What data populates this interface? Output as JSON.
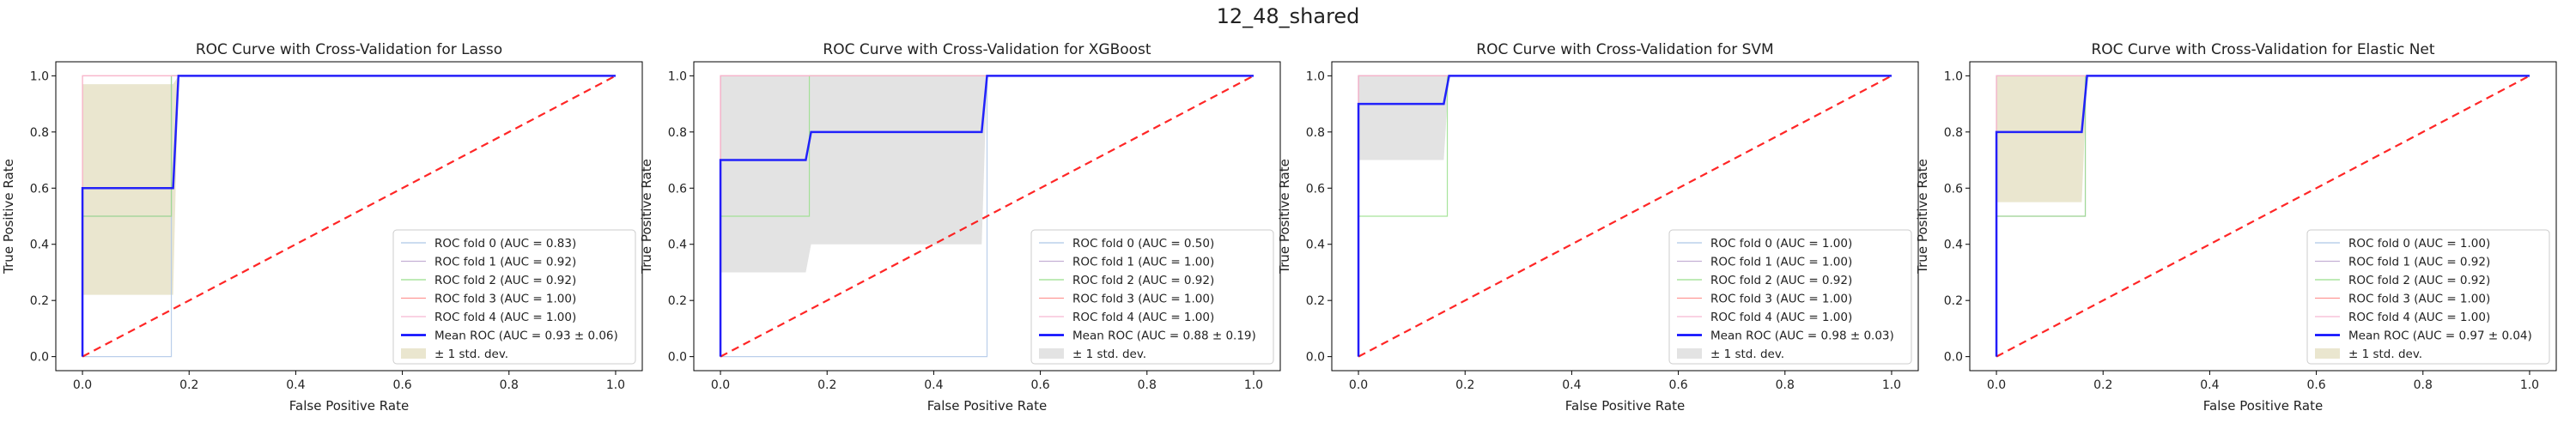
{
  "figure": {
    "suptitle": "12_48_shared"
  },
  "chart_data": [
    {
      "type": "line",
      "title": "ROC Curve with Cross-Validation for Lasso",
      "xlabel": "False Positive Rate",
      "ylabel": "True Positive Rate",
      "xlim": [
        -0.05,
        1.05
      ],
      "ylim": [
        -0.05,
        1.05
      ],
      "xticks": [
        "0.0",
        "0.2",
        "0.4",
        "0.6",
        "0.8",
        "1.0"
      ],
      "yticks": [
        "0.0",
        "0.2",
        "0.4",
        "0.6",
        "0.8",
        "1.0"
      ],
      "legend_position": "lower right",
      "folds": [
        {
          "name": "ROC fold 0 (AUC = 0.83)",
          "color": "#aec7e8",
          "x": [
            0,
            0,
            0.1667,
            0.1667,
            1
          ],
          "y": [
            0,
            0,
            0,
            1,
            1
          ]
        },
        {
          "name": "ROC fold 1 (AUC = 0.92)",
          "color": "#c5b0d5",
          "x": [
            0,
            0,
            0.1667,
            0.1667,
            1
          ],
          "y": [
            0,
            0.5,
            0.5,
            1,
            1
          ]
        },
        {
          "name": "ROC fold 2 (AUC = 0.92)",
          "color": "#98df8a",
          "x": [
            0,
            0,
            0.1667,
            0.1667,
            1
          ],
          "y": [
            0,
            0.5,
            0.5,
            1,
            1
          ]
        },
        {
          "name": "ROC fold 3 (AUC = 1.00)",
          "color": "#ff9896",
          "x": [
            0,
            0,
            1
          ],
          "y": [
            0,
            1,
            1
          ]
        },
        {
          "name": "ROC fold 4 (AUC = 1.00)",
          "color": "#f7b6d2",
          "x": [
            0,
            0,
            1
          ],
          "y": [
            0,
            1,
            1
          ]
        }
      ],
      "mean": {
        "name": "Mean ROC (AUC = 0.93 ± 0.06)",
        "color": "#0000ff",
        "x": [
          0,
          0,
          0.17,
          0.18,
          1
        ],
        "y": [
          0,
          0.6,
          0.6,
          1,
          1
        ]
      },
      "band": {
        "name": "± 1 std. dev.",
        "color": "#d8d2a8",
        "x": [
          0,
          0,
          0.17,
          0.18,
          1
        ],
        "upper": [
          0,
          0.97,
          0.97,
          1,
          1
        ],
        "lower": [
          0,
          0.22,
          0.22,
          1,
          1
        ]
      },
      "chance": {
        "color": "#ff0000",
        "x": [
          0,
          1
        ],
        "y": [
          0,
          1
        ]
      }
    },
    {
      "type": "line",
      "title": "ROC Curve with Cross-Validation for XGBoost",
      "xlabel": "False Positive Rate",
      "ylabel": "True Positive Rate",
      "xlim": [
        -0.05,
        1.05
      ],
      "ylim": [
        -0.05,
        1.05
      ],
      "xticks": [
        "0.0",
        "0.2",
        "0.4",
        "0.6",
        "0.8",
        "1.0"
      ],
      "yticks": [
        "0.0",
        "0.2",
        "0.4",
        "0.6",
        "0.8",
        "1.0"
      ],
      "legend_position": "lower right",
      "folds": [
        {
          "name": "ROC fold 0 (AUC = 0.50)",
          "color": "#aec7e8",
          "x": [
            0,
            0,
            0.5,
            0.5,
            1
          ],
          "y": [
            0,
            0,
            0,
            1,
            1
          ]
        },
        {
          "name": "ROC fold 1 (AUC = 1.00)",
          "color": "#c5b0d5",
          "x": [
            0,
            0,
            1
          ],
          "y": [
            0,
            1,
            1
          ]
        },
        {
          "name": "ROC fold 2 (AUC = 0.92)",
          "color": "#98df8a",
          "x": [
            0,
            0,
            0.1667,
            0.1667,
            1
          ],
          "y": [
            0,
            0.5,
            0.5,
            1,
            1
          ]
        },
        {
          "name": "ROC fold 3 (AUC = 1.00)",
          "color": "#ff9896",
          "x": [
            0,
            0,
            1
          ],
          "y": [
            0,
            1,
            1
          ]
        },
        {
          "name": "ROC fold 4 (AUC = 1.00)",
          "color": "#f7b6d2",
          "x": [
            0,
            0,
            1
          ],
          "y": [
            0,
            1,
            1
          ]
        }
      ],
      "mean": {
        "name": "Mean ROC (AUC = 0.88 ± 0.19)",
        "color": "#0000ff",
        "x": [
          0,
          0,
          0.16,
          0.17,
          0.49,
          0.5,
          1
        ],
        "y": [
          0,
          0.7,
          0.7,
          0.8,
          0.8,
          1,
          1
        ]
      },
      "band": {
        "name": "± 1 std. dev.",
        "color": "#cccccc",
        "x": [
          0,
          0,
          0.16,
          0.17,
          0.49,
          0.5,
          1
        ],
        "upper": [
          0,
          1,
          1,
          1,
          1,
          1,
          1
        ],
        "lower": [
          0,
          0.3,
          0.3,
          0.4,
          0.4,
          1,
          1
        ]
      },
      "chance": {
        "color": "#ff0000",
        "x": [
          0,
          1
        ],
        "y": [
          0,
          1
        ]
      }
    },
    {
      "type": "line",
      "title": "ROC Curve with Cross-Validation for SVM",
      "xlabel": "False Positive Rate",
      "ylabel": "True Positive Rate",
      "xlim": [
        -0.05,
        1.05
      ],
      "ylim": [
        -0.05,
        1.05
      ],
      "xticks": [
        "0.0",
        "0.2",
        "0.4",
        "0.6",
        "0.8",
        "1.0"
      ],
      "yticks": [
        "0.0",
        "0.2",
        "0.4",
        "0.6",
        "0.8",
        "1.0"
      ],
      "legend_position": "lower right",
      "folds": [
        {
          "name": "ROC fold 0 (AUC = 1.00)",
          "color": "#aec7e8",
          "x": [
            0,
            0,
            1
          ],
          "y": [
            0,
            1,
            1
          ]
        },
        {
          "name": "ROC fold 1 (AUC = 1.00)",
          "color": "#c5b0d5",
          "x": [
            0,
            0,
            1
          ],
          "y": [
            0,
            1,
            1
          ]
        },
        {
          "name": "ROC fold 2 (AUC = 0.92)",
          "color": "#98df8a",
          "x": [
            0,
            0,
            0.1667,
            0.1667,
            1
          ],
          "y": [
            0,
            0.5,
            0.5,
            1,
            1
          ]
        },
        {
          "name": "ROC fold 3 (AUC = 1.00)",
          "color": "#ff9896",
          "x": [
            0,
            0,
            1
          ],
          "y": [
            0,
            1,
            1
          ]
        },
        {
          "name": "ROC fold 4 (AUC = 1.00)",
          "color": "#f7b6d2",
          "x": [
            0,
            0,
            1
          ],
          "y": [
            0,
            1,
            1
          ]
        }
      ],
      "mean": {
        "name": "Mean ROC (AUC = 0.98 ± 0.03)",
        "color": "#0000ff",
        "x": [
          0,
          0,
          0.16,
          0.17,
          1
        ],
        "y": [
          0,
          0.9,
          0.9,
          1,
          1
        ]
      },
      "band": {
        "name": "± 1 std. dev.",
        "color": "#cccccc",
        "x": [
          0,
          0,
          0.16,
          0.17,
          1
        ],
        "upper": [
          0,
          1,
          1,
          1,
          1
        ],
        "lower": [
          0,
          0.7,
          0.7,
          1,
          1
        ]
      },
      "chance": {
        "color": "#ff0000",
        "x": [
          0,
          1
        ],
        "y": [
          0,
          1
        ]
      }
    },
    {
      "type": "line",
      "title": "ROC Curve with Cross-Validation for Elastic Net",
      "xlabel": "False Positive Rate",
      "ylabel": "True Positive Rate",
      "xlim": [
        -0.05,
        1.05
      ],
      "ylim": [
        -0.05,
        1.05
      ],
      "xticks": [
        "0.0",
        "0.2",
        "0.4",
        "0.6",
        "0.8",
        "1.0"
      ],
      "yticks": [
        "0.0",
        "0.2",
        "0.4",
        "0.6",
        "0.8",
        "1.0"
      ],
      "legend_position": "lower right",
      "folds": [
        {
          "name": "ROC fold 0 (AUC = 1.00)",
          "color": "#aec7e8",
          "x": [
            0,
            0,
            1
          ],
          "y": [
            0,
            1,
            1
          ]
        },
        {
          "name": "ROC fold 1 (AUC = 0.92)",
          "color": "#c5b0d5",
          "x": [
            0,
            0,
            0.1667,
            0.1667,
            1
          ],
          "y": [
            0,
            0.5,
            0.5,
            1,
            1
          ]
        },
        {
          "name": "ROC fold 2 (AUC = 0.92)",
          "color": "#98df8a",
          "x": [
            0,
            0,
            0.1667,
            0.1667,
            1
          ],
          "y": [
            0,
            0.5,
            0.5,
            1,
            1
          ]
        },
        {
          "name": "ROC fold 3 (AUC = 1.00)",
          "color": "#ff9896",
          "x": [
            0,
            0,
            1
          ],
          "y": [
            0,
            1,
            1
          ]
        },
        {
          "name": "ROC fold 4 (AUC = 1.00)",
          "color": "#f7b6d2",
          "x": [
            0,
            0,
            1
          ],
          "y": [
            0,
            1,
            1
          ]
        }
      ],
      "mean": {
        "name": "Mean ROC (AUC = 0.97 ± 0.04)",
        "color": "#0000ff",
        "x": [
          0,
          0,
          0.16,
          0.17,
          1
        ],
        "y": [
          0,
          0.8,
          0.8,
          1,
          1
        ]
      },
      "band": {
        "name": "± 1 std. dev.",
        "color": "#d8d2a8",
        "x": [
          0,
          0,
          0.16,
          0.17,
          1
        ],
        "upper": [
          0,
          1,
          1,
          1,
          1
        ],
        "lower": [
          0,
          0.55,
          0.55,
          1,
          1
        ]
      },
      "chance": {
        "color": "#ff0000",
        "x": [
          0,
          1
        ],
        "y": [
          0,
          1
        ]
      }
    }
  ]
}
